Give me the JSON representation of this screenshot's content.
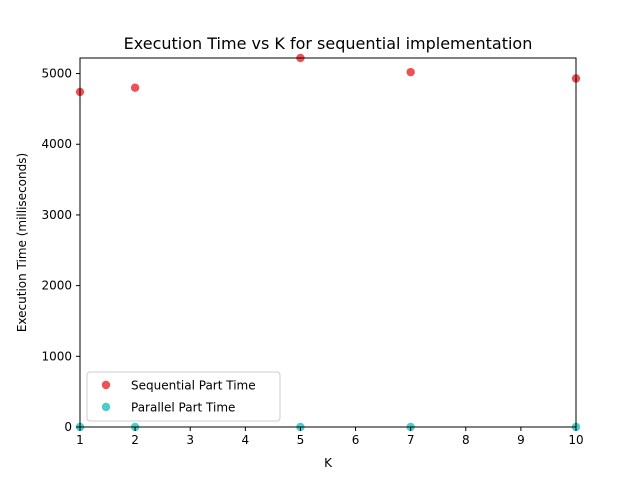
{
  "chart_data": {
    "type": "scatter",
    "title": "Execution Time vs K for sequential implementation",
    "xlabel": "K",
    "ylabel": "Execution Time (milliseconds)",
    "xlim": [
      1,
      10
    ],
    "ylim": [
      0,
      5220
    ],
    "xticks": [
      1,
      2,
      3,
      4,
      5,
      6,
      7,
      8,
      9,
      10
    ],
    "yticks": [
      0,
      1000,
      2000,
      3000,
      4000,
      5000
    ],
    "grid": false,
    "legend_position": "lower-left",
    "series": [
      {
        "name": "Sequential Part Time",
        "color": "#e8262b",
        "points": [
          {
            "x": 1,
            "y": 4740
          },
          {
            "x": 2,
            "y": 4800
          },
          {
            "x": 5,
            "y": 5220
          },
          {
            "x": 7,
            "y": 5020
          },
          {
            "x": 10,
            "y": 4930
          }
        ]
      },
      {
        "name": "Parallel Part Time",
        "color": "#1fbfbf",
        "points": [
          {
            "x": 1,
            "y": 0
          },
          {
            "x": 2,
            "y": 0
          },
          {
            "x": 5,
            "y": 0
          },
          {
            "x": 7,
            "y": 0
          },
          {
            "x": 10,
            "y": 0
          }
        ]
      }
    ]
  }
}
